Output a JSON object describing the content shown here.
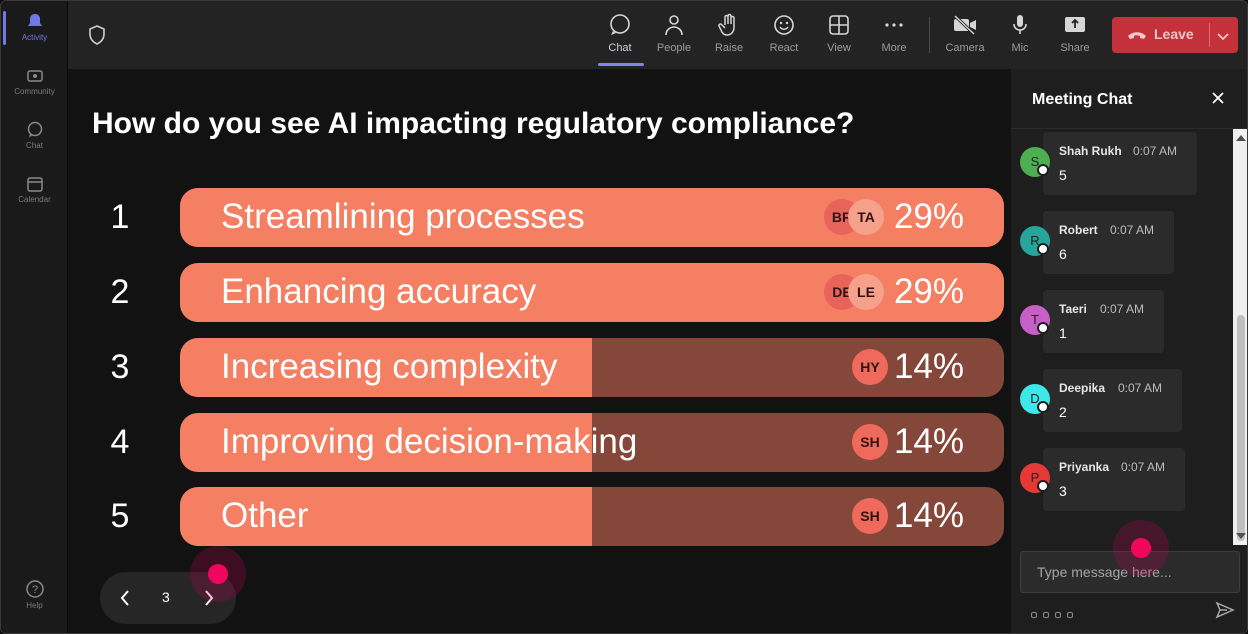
{
  "rail": {
    "items": [
      {
        "label": "Activity",
        "icon": "bell-icon"
      },
      {
        "label": "Community",
        "icon": "community-icon"
      },
      {
        "label": "Chat",
        "icon": "chat-icon"
      },
      {
        "label": "Calendar",
        "icon": "calendar-icon"
      },
      {
        "label": "Help",
        "icon": "help-icon"
      }
    ]
  },
  "toolbar": {
    "items": [
      {
        "label": "Chat",
        "icon": "chat-icon"
      },
      {
        "label": "People",
        "icon": "people-icon"
      },
      {
        "label": "Raise",
        "icon": "hand-icon"
      },
      {
        "label": "React",
        "icon": "smiley-icon"
      },
      {
        "label": "View",
        "icon": "grid-icon"
      },
      {
        "label": "More",
        "icon": "more-icon"
      },
      {
        "label": "Camera",
        "icon": "camera-off-icon"
      },
      {
        "label": "Mic",
        "icon": "mic-icon"
      },
      {
        "label": "Share",
        "icon": "share-icon"
      }
    ],
    "leave_label": "Leave"
  },
  "poll": {
    "question": "How do you see AI impacting regulatory compliance?",
    "options": [
      {
        "num": "1",
        "text": "Streamlining processes",
        "percent": "29%",
        "fraction": 1.0,
        "avatars": [
          "BR",
          "TA"
        ]
      },
      {
        "num": "2",
        "text": "Enhancing accuracy",
        "percent": "29%",
        "fraction": 1.0,
        "avatars": [
          "DE",
          "LE"
        ]
      },
      {
        "num": "3",
        "text": "Increasing complexity",
        "percent": "14%",
        "fraction": 0.5,
        "avatars": [
          "HY"
        ]
      },
      {
        "num": "4",
        "text": "Improving decision-making",
        "percent": "14%",
        "fraction": 0.5,
        "avatars": [
          "SH"
        ]
      },
      {
        "num": "5",
        "text": "Other",
        "percent": "14%",
        "fraction": 0.5,
        "avatars": [
          "SH"
        ]
      }
    ],
    "page": "3"
  },
  "chat": {
    "title": "Meeting Chat",
    "messages": [
      {
        "initial": "S",
        "name": "Shah Rukh",
        "time": "0:07 AM",
        "body": "5",
        "color": "#4caf50"
      },
      {
        "initial": "R",
        "name": "Robert",
        "time": "0:07 AM",
        "body": "6",
        "color": "#26a69a"
      },
      {
        "initial": "T",
        "name": "Taeri",
        "time": "0:07 AM",
        "body": "1",
        "color": "#c660c6"
      },
      {
        "initial": "D",
        "name": "Deepika",
        "time": "0:07 AM",
        "body": "2",
        "color": "#3de8e8"
      },
      {
        "initial": "P",
        "name": "Priyanka",
        "time": "0:07 AM",
        "body": "3",
        "color": "#e53935"
      }
    ],
    "input_placeholder": "Type message here..."
  }
}
